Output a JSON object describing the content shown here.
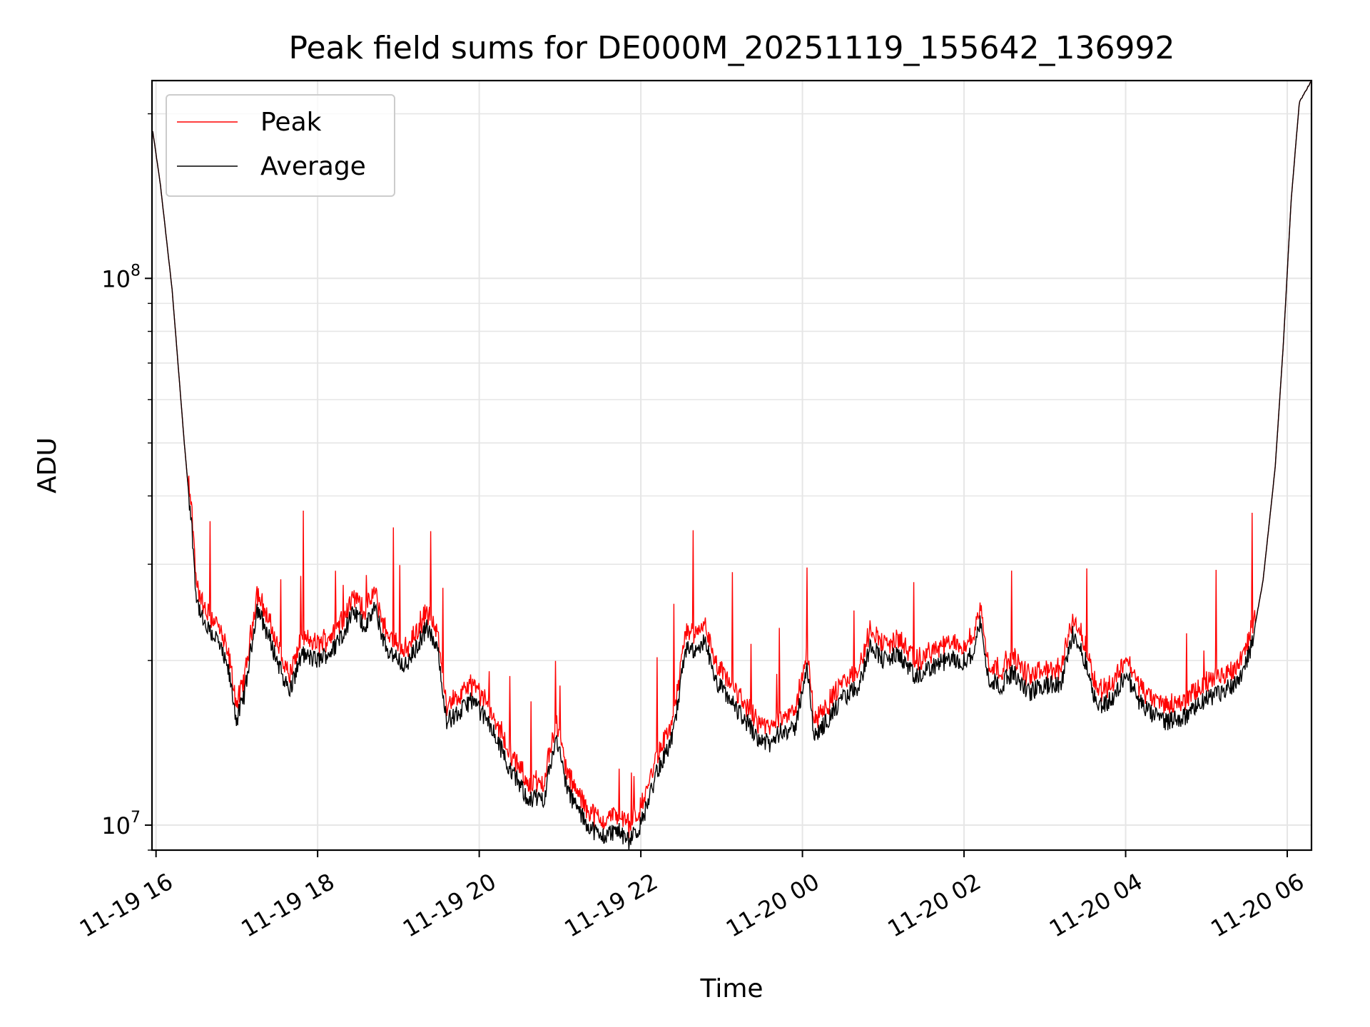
{
  "chart_data": {
    "type": "line",
    "title": "Peak field sums for DE000M_20251119_155642_136992",
    "xlabel": "Time",
    "ylabel": "ADU",
    "yscale": "log",
    "ylim": [
      9000000,
      230000000
    ],
    "x_range_hours_from_2025_11_19_00_00": [
      15.95,
      30.3
    ],
    "x_ticks": [
      {
        "label": "11-19 16",
        "hour": 16
      },
      {
        "label": "11-19 18",
        "hour": 18
      },
      {
        "label": "11-19 20",
        "hour": 20
      },
      {
        "label": "11-19 22",
        "hour": 22
      },
      {
        "label": "11-20 00",
        "hour": 24
      },
      {
        "label": "11-20 02",
        "hour": 26
      },
      {
        "label": "11-20 04",
        "hour": 28
      },
      {
        "label": "11-20 06",
        "hour": 30
      }
    ],
    "y_ticks": [
      {
        "base": "10",
        "exp": "7",
        "value": 10000000
      },
      {
        "base": "10",
        "exp": "8",
        "value": 100000000
      }
    ],
    "grid": true,
    "legend_position": "top-left",
    "series": [
      {
        "name": "Peak",
        "color": "#ff0000"
      },
      {
        "name": "Average",
        "color": "#000000"
      }
    ],
    "average_points": [
      [
        15.95,
        190000000
      ],
      [
        16.05,
        150000000
      ],
      [
        16.2,
        95000000
      ],
      [
        16.35,
        50000000
      ],
      [
        16.45,
        34000000
      ],
      [
        16.5,
        26000000
      ],
      [
        16.6,
        23000000
      ],
      [
        16.75,
        22000000
      ],
      [
        16.9,
        19000000
      ],
      [
        17.0,
        15500000
      ],
      [
        17.1,
        17500000
      ],
      [
        17.25,
        25000000
      ],
      [
        17.4,
        22000000
      ],
      [
        17.5,
        20000000
      ],
      [
        17.65,
        17500000
      ],
      [
        17.8,
        20500000
      ],
      [
        18.0,
        20000000
      ],
      [
        18.2,
        21000000
      ],
      [
        18.45,
        24500000
      ],
      [
        18.6,
        23000000
      ],
      [
        18.7,
        25000000
      ],
      [
        18.85,
        21000000
      ],
      [
        19.1,
        19500000
      ],
      [
        19.35,
        23000000
      ],
      [
        19.5,
        20500000
      ],
      [
        19.6,
        15500000
      ],
      [
        19.75,
        16000000
      ],
      [
        19.9,
        17000000
      ],
      [
        20.1,
        15500000
      ],
      [
        20.25,
        14000000
      ],
      [
        20.4,
        12500000
      ],
      [
        20.6,
        11200000
      ],
      [
        20.8,
        11200000
      ],
      [
        20.95,
        14500000
      ],
      [
        21.1,
        11500000
      ],
      [
        21.3,
        10200000
      ],
      [
        21.5,
        9500000
      ],
      [
        21.7,
        9800000
      ],
      [
        21.85,
        9300000
      ],
      [
        22.0,
        10000000
      ],
      [
        22.2,
        12500000
      ],
      [
        22.4,
        14500000
      ],
      [
        22.55,
        21000000
      ],
      [
        22.7,
        20500000
      ],
      [
        22.8,
        22000000
      ],
      [
        22.9,
        18500000
      ],
      [
        23.1,
        17000000
      ],
      [
        23.3,
        15500000
      ],
      [
        23.45,
        14500000
      ],
      [
        23.6,
        14000000
      ],
      [
        23.75,
        15000000
      ],
      [
        23.9,
        14800000
      ],
      [
        24.05,
        19500000
      ],
      [
        24.15,
        14500000
      ],
      [
        24.3,
        15500000
      ],
      [
        24.5,
        17000000
      ],
      [
        24.7,
        18000000
      ],
      [
        24.85,
        21500000
      ],
      [
        25.0,
        20000000
      ],
      [
        25.2,
        20500000
      ],
      [
        25.4,
        18500000
      ],
      [
        25.6,
        19500000
      ],
      [
        25.8,
        20000000
      ],
      [
        26.0,
        20000000
      ],
      [
        26.1,
        20500000
      ],
      [
        26.2,
        23500000
      ],
      [
        26.3,
        18500000
      ],
      [
        26.45,
        18000000
      ],
      [
        26.6,
        19000000
      ],
      [
        26.8,
        17500000
      ],
      [
        27.0,
        18000000
      ],
      [
        27.2,
        18000000
      ],
      [
        27.35,
        22500000
      ],
      [
        27.5,
        20000000
      ],
      [
        27.65,
        16500000
      ],
      [
        27.85,
        17000000
      ],
      [
        28.0,
        19000000
      ],
      [
        28.15,
        17000000
      ],
      [
        28.3,
        16000000
      ],
      [
        28.5,
        15500000
      ],
      [
        28.75,
        15800000
      ],
      [
        29.0,
        17000000
      ],
      [
        29.2,
        17500000
      ],
      [
        29.4,
        18500000
      ],
      [
        29.55,
        21000000
      ],
      [
        29.7,
        28000000
      ],
      [
        29.85,
        45000000
      ],
      [
        29.95,
        75000000
      ],
      [
        30.05,
        140000000
      ],
      [
        30.15,
        210000000
      ],
      [
        30.3,
        230000000
      ]
    ]
  }
}
